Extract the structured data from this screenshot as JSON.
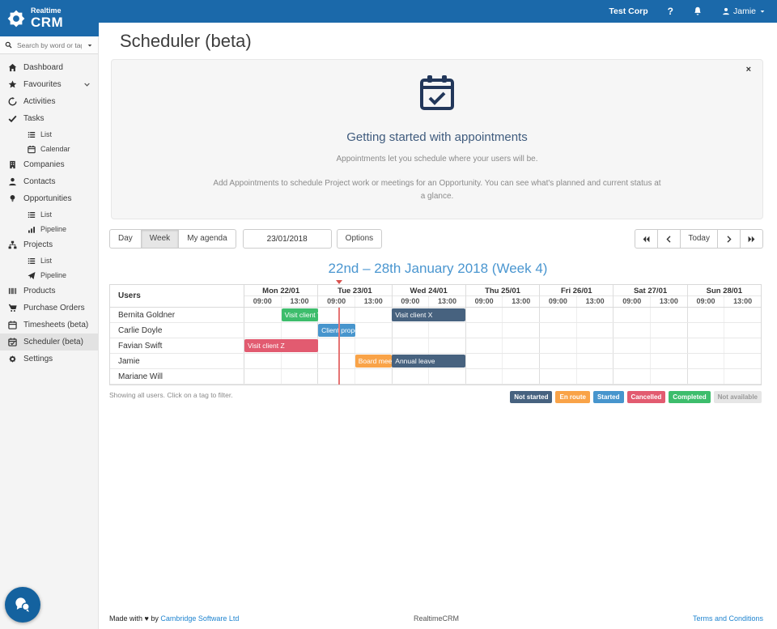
{
  "brand": {
    "realtime": "Realtime",
    "crm": "CRM"
  },
  "navbar": {
    "company": "Test Corp",
    "help": "?",
    "user": "Jamie"
  },
  "sidebar": {
    "search_placeholder": "Search by word or tag...",
    "items": [
      {
        "label": "Dashboard",
        "icon": "home"
      },
      {
        "label": "Favourites",
        "icon": "star",
        "chevron": true
      },
      {
        "label": "Activities",
        "icon": "history"
      },
      {
        "label": "Tasks",
        "icon": "check"
      },
      {
        "label": "List",
        "icon": "list",
        "sub": true
      },
      {
        "label": "Calendar",
        "icon": "calendar",
        "sub": true
      },
      {
        "label": "Companies",
        "icon": "building"
      },
      {
        "label": "Contacts",
        "icon": "person"
      },
      {
        "label": "Opportunities",
        "icon": "lightbulb"
      },
      {
        "label": "List",
        "icon": "list",
        "sub": true
      },
      {
        "label": "Pipeline",
        "icon": "chart",
        "sub": true
      },
      {
        "label": "Projects",
        "icon": "sitemap"
      },
      {
        "label": "List",
        "icon": "list",
        "sub": true
      },
      {
        "label": "Pipeline",
        "icon": "paper-plane",
        "sub": true
      },
      {
        "label": "Products",
        "icon": "barcode"
      },
      {
        "label": "Purchase Orders",
        "icon": "cart"
      },
      {
        "label": "Timesheets (beta)",
        "icon": "calendar"
      },
      {
        "label": "Scheduler (beta)",
        "icon": "calendar-check",
        "active": true
      },
      {
        "label": "Settings",
        "icon": "gear"
      }
    ]
  },
  "page": {
    "title": "Scheduler (beta)"
  },
  "getting_started": {
    "close": "×",
    "heading": "Getting started with appointments",
    "line1": "Appointments let you schedule where your users will be.",
    "line2": "Add Appointments to schedule Project work or meetings for an Opportunity. You can see what's planned and current status at a glance."
  },
  "toolbar": {
    "day": "Day",
    "week": "Week",
    "my_agenda": "My agenda",
    "date_value": "23/01/2018",
    "options": "Options",
    "today": "Today"
  },
  "week_heading": "22nd – 28th January 2018 (Week 4)",
  "schedule": {
    "users_header": "Users",
    "days": [
      "Mon 22/01",
      "Tue 23/01",
      "Wed 24/01",
      "Thu 25/01",
      "Fri 26/01",
      "Sat 27/01",
      "Sun 28/01"
    ],
    "times": [
      "09:00",
      "13:00"
    ],
    "users": [
      "Bernita Goldner",
      "Carlie Doyle",
      "Favian Swift",
      "Jamie",
      "Mariane Will"
    ],
    "appointments": [
      {
        "user": 0,
        "label": "Visit client Y",
        "status": "completed",
        "start": 1,
        "span": 1
      },
      {
        "user": 0,
        "label": "Visit client X",
        "status": "not_started",
        "start": 4,
        "span": 2
      },
      {
        "user": 1,
        "label": "Client proposal",
        "status": "started",
        "start": 2,
        "span": 1
      },
      {
        "user": 2,
        "label": "Visit client Z",
        "status": "cancelled",
        "start": 0,
        "span": 2
      },
      {
        "user": 3,
        "label": "Board meeting",
        "status": "en_route",
        "start": 3,
        "span": 1
      },
      {
        "user": 3,
        "label": "Annual leave",
        "status": "not_started",
        "start": 4,
        "span": 2
      }
    ],
    "current_time_pct": 18.3,
    "filter_note": "Showing all users. Click on a tag to filter."
  },
  "legend": [
    {
      "label": "Not started",
      "status": "not_started"
    },
    {
      "label": "En route",
      "status": "en_route"
    },
    {
      "label": "Started",
      "status": "started"
    },
    {
      "label": "Cancelled",
      "status": "cancelled"
    },
    {
      "label": "Completed",
      "status": "completed"
    },
    {
      "label": "Not available",
      "status": "not_available"
    }
  ],
  "colors": {
    "navbar": "#1b69aa",
    "link": "#2185d0",
    "week_heading": "#4a96d0",
    "panel_heading": "#3f5b7d",
    "current_time": "#e57373",
    "current_marker": "#d9534f",
    "not_started": "#47627f",
    "en_route": "#f9a348",
    "started": "#4795cd",
    "cancelled": "#e25b70",
    "completed": "#3dbd6c",
    "not_available": "#e6e6e6",
    "not_available_text": "#999999"
  },
  "footer": {
    "made_with": "Made with ♥ by",
    "company_link": "Cambridge Software Ltd",
    "center": "RealtimeCRM",
    "terms": "Terms and Conditions"
  }
}
